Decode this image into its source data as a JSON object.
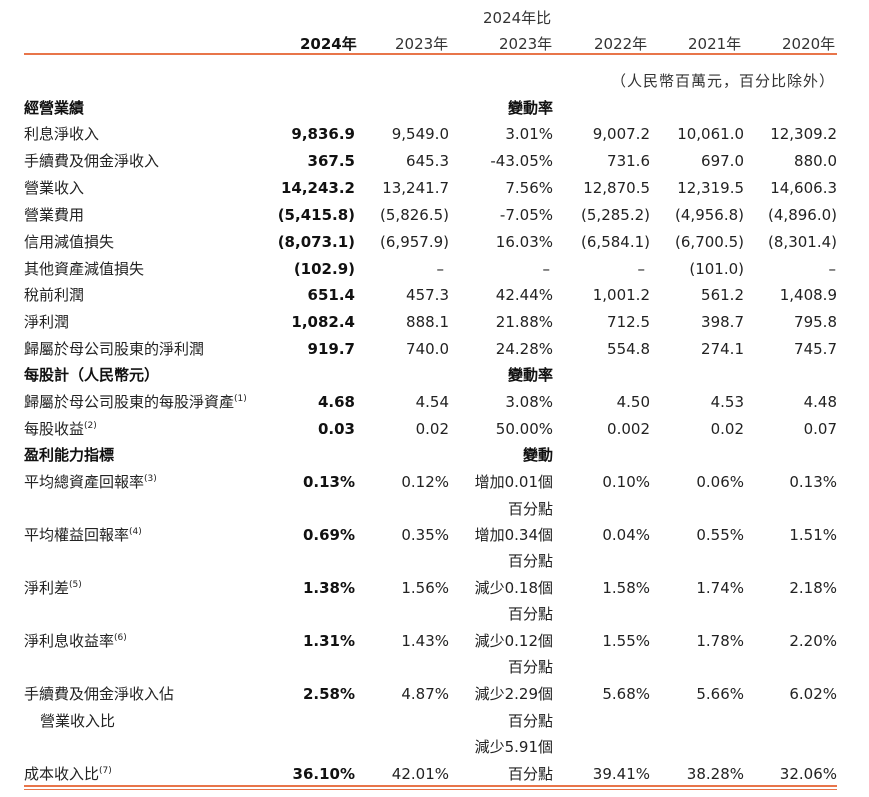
{
  "columns": {
    "compare_line1": "2024年比",
    "y2024": "2024年",
    "y2023": "2023年",
    "compare_line2": "2023年",
    "y2022": "2022年",
    "y2021": "2021年",
    "y2020": "2020年"
  },
  "unit_note": "（人民幣百萬元，百分比除外）",
  "sections": {
    "operating": {
      "title": "經營業績",
      "change_header": "變動率"
    },
    "per_share": {
      "title": "每股計（人民幣元）",
      "change_header": "變動率"
    },
    "profitability": {
      "title": "盈利能力指標",
      "change_header": "變動"
    }
  },
  "rows": {
    "r1": {
      "label": "利息淨收入",
      "v2024": "9,836.9",
      "v2023": "9,549.0",
      "change": "3.01%",
      "v2022": "9,007.2",
      "v2021": "10,061.0",
      "v2020": "12,309.2"
    },
    "r2": {
      "label": "手續費及佣金淨收入",
      "v2024": "367.5",
      "v2023": "645.3",
      "change": "-43.05%",
      "v2022": "731.6",
      "v2021": "697.0",
      "v2020": "880.0"
    },
    "r3": {
      "label": "營業收入",
      "v2024": "14,243.2",
      "v2023": "13,241.7",
      "change": "7.56%",
      "v2022": "12,870.5",
      "v2021": "12,319.5",
      "v2020": "14,606.3"
    },
    "r4": {
      "label": "營業費用",
      "v2024": "(5,415.8)",
      "v2023": "(5,826.5)",
      "change": "-7.05%",
      "v2022": "(5,285.2)",
      "v2021": "(4,956.8)",
      "v2020": "(4,896.0)"
    },
    "r5": {
      "label": "信用減值損失",
      "v2024": "(8,073.1)",
      "v2023": "(6,957.9)",
      "change": "16.03%",
      "v2022": "(6,584.1)",
      "v2021": "(6,700.5)",
      "v2020": "(8,301.4)"
    },
    "r6": {
      "label": "其他資產減值損失",
      "v2024": "(102.9)",
      "v2023": "–",
      "change": "–",
      "v2022": "–",
      "v2021": "(101.0)",
      "v2020": "–"
    },
    "r7": {
      "label": "稅前利潤",
      "v2024": "651.4",
      "v2023": "457.3",
      "change": "42.44%",
      "v2022": "1,001.2",
      "v2021": "561.2",
      "v2020": "1,408.9"
    },
    "r8": {
      "label": "淨利潤",
      "v2024": "1,082.4",
      "v2023": "888.1",
      "change": "21.88%",
      "v2022": "712.5",
      "v2021": "398.7",
      "v2020": "795.8"
    },
    "r9": {
      "label": "歸屬於母公司股東的淨利潤",
      "v2024": "919.7",
      "v2023": "740.0",
      "change": "24.28%",
      "v2022": "554.8",
      "v2021": "274.1",
      "v2020": "745.7"
    },
    "r10": {
      "label": "歸屬於母公司股東的每股淨資產",
      "note": "(1)",
      "v2024": "4.68",
      "v2023": "4.54",
      "change": "3.08%",
      "v2022": "4.50",
      "v2021": "4.53",
      "v2020": "4.48"
    },
    "r11": {
      "label": "每股收益",
      "note": "(2)",
      "v2024": "0.03",
      "v2023": "0.02",
      "change": "50.00%",
      "v2022": "0.002",
      "v2021": "0.02",
      "v2020": "0.07"
    },
    "r12": {
      "label": "平均總資產回報率",
      "note": "(3)",
      "v2024": "0.13%",
      "v2023": "0.12%",
      "change": "增加0.01個",
      "change2": "百分點",
      "v2022": "0.10%",
      "v2021": "0.06%",
      "v2020": "0.13%"
    },
    "r13": {
      "label": "平均權益回報率",
      "note": "(4)",
      "v2024": "0.69%",
      "v2023": "0.35%",
      "change": "增加0.34個",
      "change2": "百分點",
      "v2022": "0.04%",
      "v2021": "0.55%",
      "v2020": "1.51%"
    },
    "r14": {
      "label": "淨利差",
      "note": "(5)",
      "v2024": "1.38%",
      "v2023": "1.56%",
      "change": "減少0.18個",
      "change2": "百分點",
      "v2022": "1.58%",
      "v2021": "1.74%",
      "v2020": "2.18%"
    },
    "r15": {
      "label": "淨利息收益率",
      "note": "(6)",
      "v2024": "1.31%",
      "v2023": "1.43%",
      "change": "減少0.12個",
      "change2": "百分點",
      "v2022": "1.55%",
      "v2021": "1.78%",
      "v2020": "2.20%"
    },
    "r16": {
      "label": "手續費及佣金淨收入佔",
      "label2": "營業收入比",
      "v2024": "2.58%",
      "v2023": "4.87%",
      "change": "減少2.29個",
      "change2": "百分點",
      "v2022": "5.68%",
      "v2021": "5.66%",
      "v2020": "6.02%"
    },
    "r17": {
      "label": "成本收入比",
      "note": "(7)",
      "v2024": "36.10%",
      "v2023": "42.01%",
      "change": "減少5.91個",
      "change2": "百分點",
      "v2022": "39.41%",
      "v2021": "38.28%",
      "v2020": "32.06%"
    }
  },
  "colors": {
    "accent_rule": "#e8754a",
    "text": "#222222"
  }
}
